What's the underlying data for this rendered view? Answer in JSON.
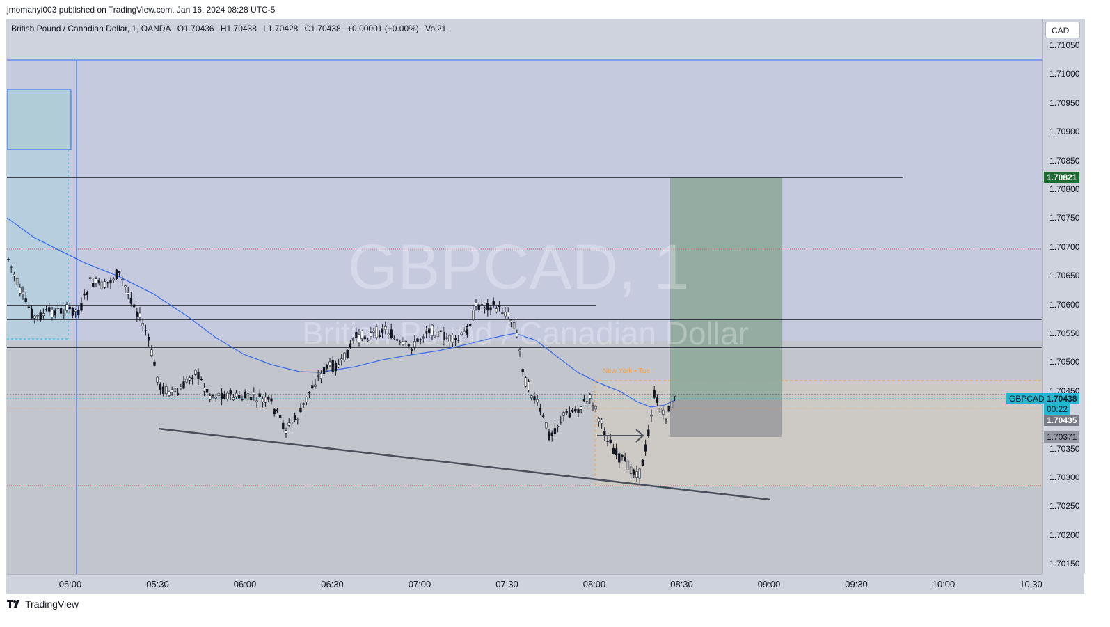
{
  "header": {
    "publisher": "jmomanyi003 published on TradingView.com, Jan 16, 2024 08:28 UTC-5"
  },
  "legend": {
    "title": "British Pound / Canadian Dollar, 1, OANDA",
    "open": "O1.70436",
    "high": "H1.70438",
    "low": "L1.70428",
    "close": "C1.70438",
    "change": "+0.00001 (+0.00%)",
    "volume": "Vol21"
  },
  "watermark": {
    "symbol": "GBPCAD, 1",
    "name": "British Pound / Canadian Dollar"
  },
  "currency_button": "CAD",
  "session_label": "New York • Tue",
  "price_axis": [
    "1.71050",
    "1.71000",
    "1.70950",
    "1.70900",
    "1.70850",
    "1.70800",
    "1.70750",
    "1.70700",
    "1.70650",
    "1.70600",
    "1.70550",
    "1.70500",
    "1.70450",
    "1.70400",
    "1.70350",
    "1.70300",
    "1.70250",
    "1.70200",
    "1.70150"
  ],
  "time_axis": [
    "05:00",
    "05:30",
    "06:00",
    "06:30",
    "07:00",
    "07:30",
    "08:00",
    "08:30",
    "09:00",
    "09:30",
    "10:00",
    "10:30"
  ],
  "price_tags": {
    "target": "1.70821",
    "symbol_label": "GBPCAD",
    "last": "1.70438",
    "countdown": "00:22",
    "entry": "1.70435",
    "stop": "1.70371"
  },
  "colors": {
    "bull": "#ffffff",
    "bear": "#131722",
    "ma": "#3c6fe6",
    "profit_zone": "#8fa89b",
    "loss_zone": "#9c9c9f",
    "last_price": "#22b8d0",
    "target_tag": "#1e6b2f",
    "session": "#f7a23b"
  },
  "footer": {
    "brand": "TradingView"
  }
}
